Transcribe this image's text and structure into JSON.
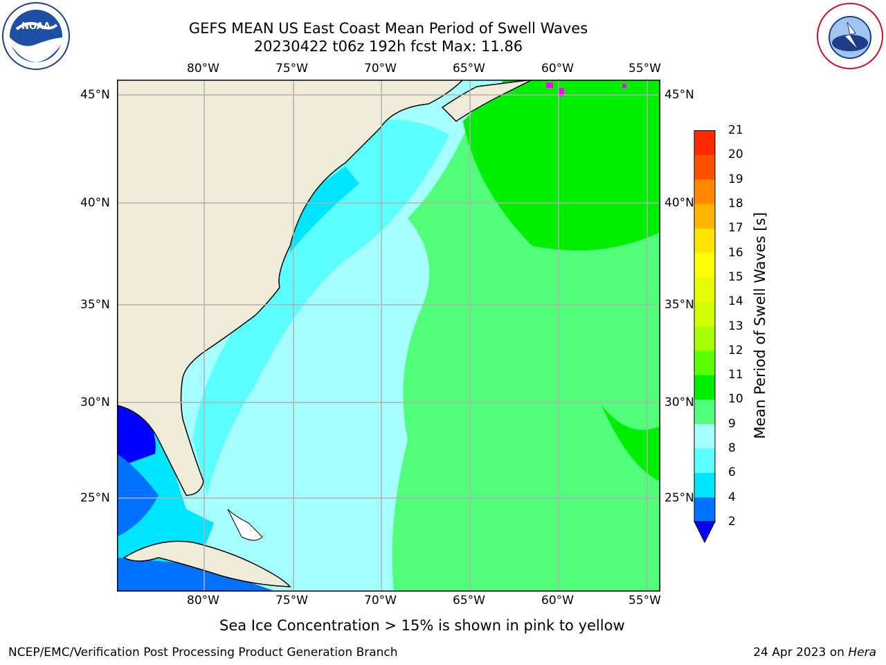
{
  "title": {
    "line1": "GEFS MEAN US East Coast Mean Period of Swell Waves",
    "line2": "20230422 t06z 192h fcst   Max: 11.86"
  },
  "map": {
    "lon_labels": [
      "80°W",
      "75°W",
      "70°W",
      "65°W",
      "60°W",
      "55°W"
    ],
    "lat_labels": [
      "45°N",
      "40°N",
      "35°N",
      "30°N",
      "25°N"
    ],
    "colors": {
      "land": "#efedda",
      "grid": "#b0b0b0",
      "coast": "#000000",
      "ice": "#ff00ff"
    }
  },
  "colorbar": {
    "title": "Mean Period of Swell Waves [s]",
    "ticks": [
      "2",
      "4",
      "6",
      "8",
      "9",
      "10",
      "11",
      "12",
      "13",
      "14",
      "15",
      "16",
      "17",
      "18",
      "19",
      "20",
      "21"
    ],
    "colors": [
      "#0072ff",
      "#00e5ff",
      "#5cffff",
      "#a5ffff",
      "#52ff7a",
      "#00ee00",
      "#5cff00",
      "#a5ff00",
      "#d2ff00",
      "#e6ff00",
      "#ffff00",
      "#ffe500",
      "#ffb400",
      "#ff8800",
      "#ff5000",
      "#ff2a00",
      "#ff0000"
    ],
    "extend_color": "#0000ff"
  },
  "note": "Sea Ice Concentration > 15% is shown in pink to yellow",
  "footer": {
    "left": "NCEP/EMC/Verification Post Processing Product Generation Branch",
    "right_date": "24 Apr 2023 on ",
    "right_machine": "Hera"
  },
  "logos": {
    "noaa": "NOAA",
    "nws": "NATIONAL WEATHER SERVICE"
  }
}
